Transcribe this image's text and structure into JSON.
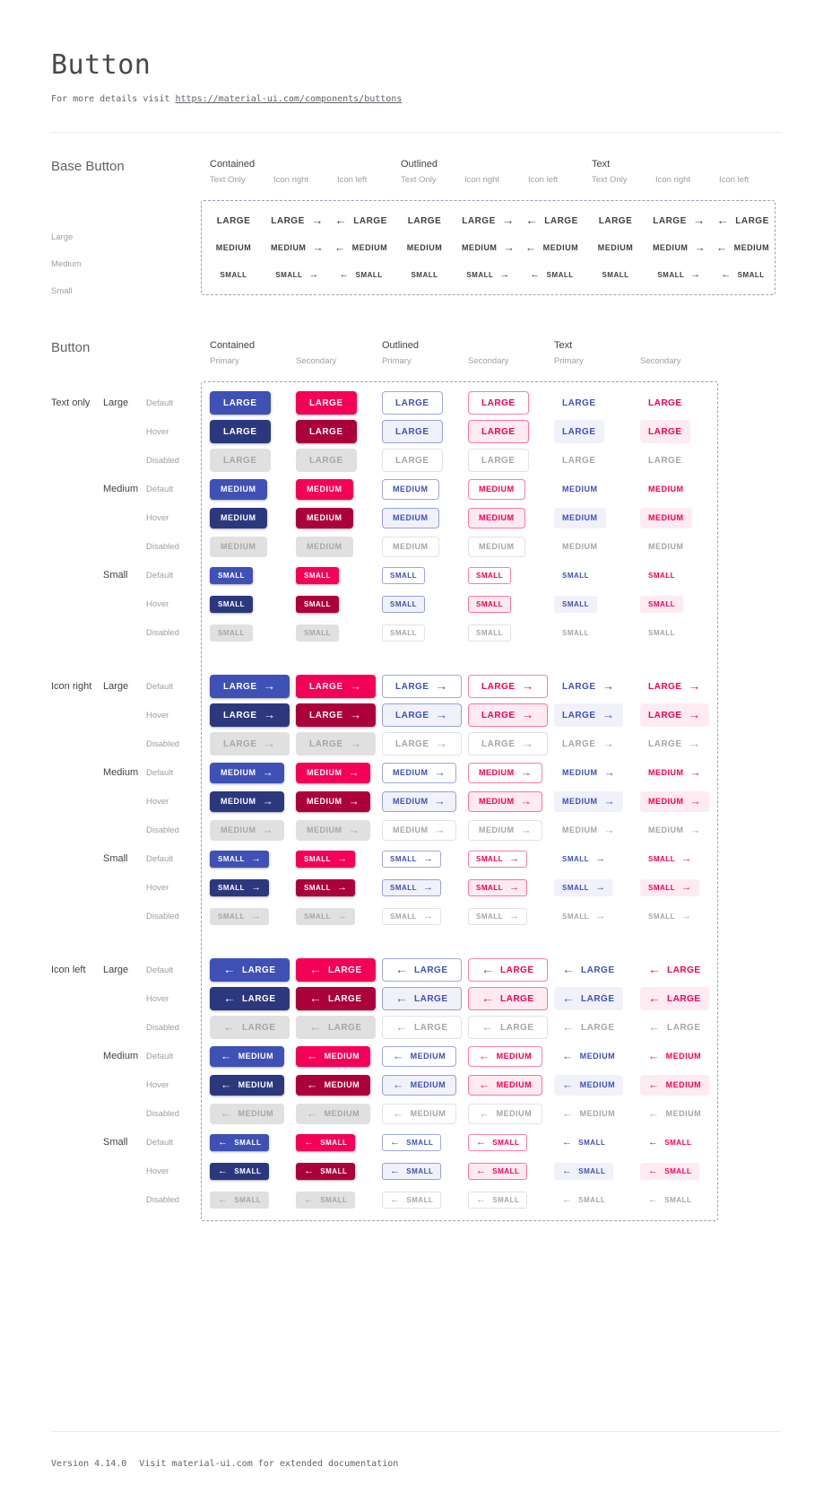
{
  "header": {
    "title": "Button",
    "subtitle_prefix": "For more details visit ",
    "link": "https://material-ui.com/components/buttons"
  },
  "footer": {
    "version": "Version 4.14.0",
    "note": "Visit material-ui.com for extended documentation"
  },
  "colors": {
    "primary": "#3f51b5",
    "primary_hover": "#2c387e",
    "secondary": "#f50057",
    "secondary_hover": "#ab003c",
    "disabled_bg": "#e0e0e0",
    "disabled_text": "#a6a6a6",
    "base_button_text": "#3b4045",
    "primary_tint": "rgba(63,81,181,0.08)",
    "secondary_tint": "rgba(245,0,87,0.08)",
    "dashed_border": "#9aa1b9"
  },
  "icons": {
    "right": "→",
    "left": "←"
  },
  "base_section": {
    "heading": "Base Button",
    "groups": [
      {
        "label": "Contained",
        "columns": [
          "Text Only",
          "Icon right",
          "Icon left"
        ]
      },
      {
        "label": "Outlined",
        "columns": [
          "Text Only",
          "Icon right",
          "Icon left"
        ]
      },
      {
        "label": "Text",
        "columns": [
          "Text Only",
          "Icon right",
          "Icon left"
        ]
      }
    ],
    "rows": [
      {
        "label": "Large",
        "button_text": "LARGE"
      },
      {
        "label": "Medium",
        "button_text": "MEDIUM"
      },
      {
        "label": "Small",
        "button_text": "SMALL"
      }
    ]
  },
  "button_section": {
    "heading": "Button",
    "groups": [
      {
        "label": "Contained",
        "columns": [
          "Primary",
          "Secondary"
        ]
      },
      {
        "label": "Outlined",
        "columns": [
          "Primary",
          "Secondary"
        ]
      },
      {
        "label": "Text",
        "columns": [
          "Primary",
          "Secondary"
        ]
      }
    ],
    "icon_groups": [
      {
        "label": "Text only",
        "icon": "none"
      },
      {
        "label": "Icon right",
        "icon": "right"
      },
      {
        "label": "Icon left",
        "icon": "left"
      }
    ],
    "sizes": [
      {
        "label": "Large",
        "button_text": "LARGE"
      },
      {
        "label": "Medium",
        "button_text": "MEDIUM"
      },
      {
        "label": "Small",
        "button_text": "SMALL"
      }
    ],
    "states": [
      "Default",
      "Hover",
      "Disabled"
    ]
  }
}
